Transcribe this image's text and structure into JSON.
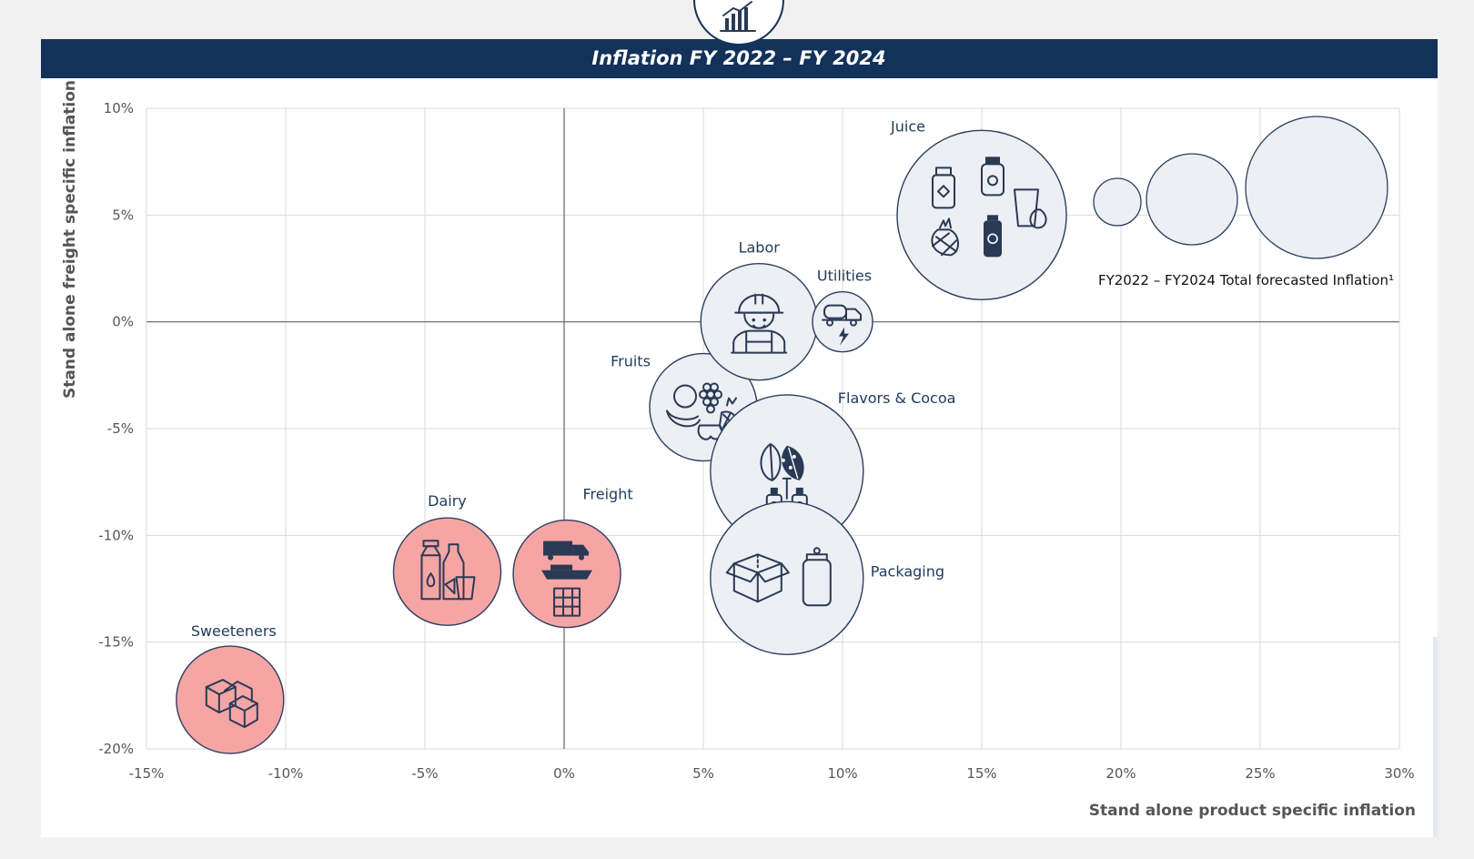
{
  "page": {
    "title": "Inflation FY 2022 – FY 2024"
  },
  "colors": {
    "header_bg": "#13325a",
    "bubble_neutral": "#eceff3",
    "bubble_highlight": "#f6a5a5",
    "bubble_stroke": "#2c3f5f",
    "grid": "#d9d9d9"
  },
  "chart_data": {
    "type": "scatter",
    "title": "Inflation FY 2022 – FY 2024",
    "xlabel": "Stand alone product specific inflation",
    "ylabel": "Stand alone freight specific inflation",
    "xlim": [
      -15,
      30
    ],
    "ylim": [
      -20,
      10
    ],
    "xticks": [
      "-15%",
      "-10%",
      "-5%",
      "0%",
      "5%",
      "10%",
      "15%",
      "20%",
      "25%",
      "30%"
    ],
    "yticks": [
      "10%",
      "5%",
      "0%",
      "-5%",
      "-10%",
      "-15%",
      "-20%"
    ],
    "grid": true,
    "points": [
      {
        "label": "Sweeteners",
        "x": -12,
        "y": -17.7,
        "highlight": true,
        "icon": "sugar-cubes-icon"
      },
      {
        "label": "Dairy",
        "x": -4.2,
        "y": -11.7,
        "highlight": true,
        "icon": "milk-carton-icon"
      },
      {
        "label": "Freight",
        "x": 0.1,
        "y": -11.8,
        "highlight": true,
        "icon": "truck-ship-train-icon"
      },
      {
        "label": "Fruits",
        "x": 5,
        "y": -4,
        "highlight": false,
        "icon": "fruits-icon"
      },
      {
        "label": "Labor",
        "x": 7,
        "y": 0,
        "highlight": false,
        "icon": "worker-icon"
      },
      {
        "label": "Utilities",
        "x": 10,
        "y": 0,
        "highlight": false,
        "icon": "tanker-truck-icon"
      },
      {
        "label": "Flavors & Cocoa",
        "x": 8,
        "y": -7,
        "highlight": false,
        "icon": "cocoa-pod-icon"
      },
      {
        "label": "Packaging",
        "x": 8,
        "y": -12,
        "highlight": false,
        "icon": "box-can-icon"
      },
      {
        "label": "Juice",
        "x": 15,
        "y": 5,
        "highlight": false,
        "icon": "juice-bottles-icon"
      }
    ],
    "legend": {
      "label": "FY2022 – FY2024 Total forecasted Inflation¹",
      "placement": "top-right"
    }
  }
}
